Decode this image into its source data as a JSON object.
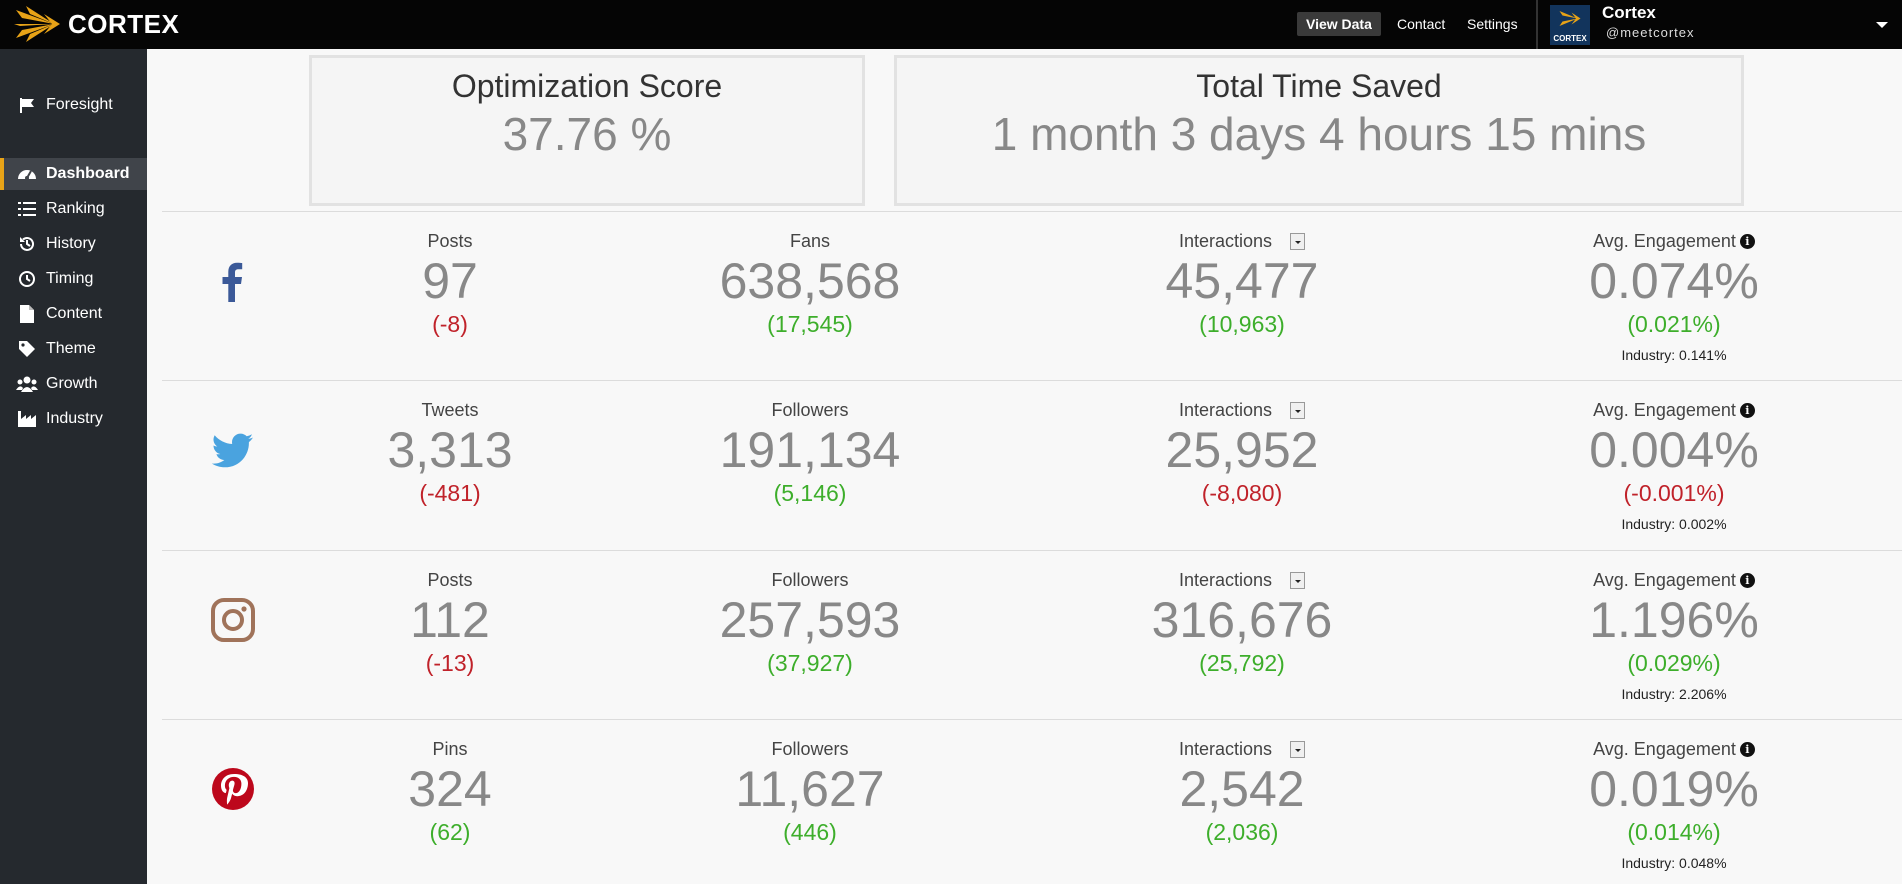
{
  "brand": {
    "logo_text": "CORTEX"
  },
  "topnav": {
    "view_data": "View Data",
    "contact": "Contact",
    "settings": "Settings"
  },
  "account": {
    "name": "Cortex",
    "handle": "@meetcortex",
    "avatar_text": "CORTEX"
  },
  "sidebar": {
    "items": [
      {
        "label": "Foresight",
        "icon": "flag-icon"
      },
      {
        "label": "Dashboard",
        "icon": "dashboard-icon",
        "active": true
      },
      {
        "label": "Ranking",
        "icon": "list-icon"
      },
      {
        "label": "History",
        "icon": "history-icon"
      },
      {
        "label": "Timing",
        "icon": "clock-icon"
      },
      {
        "label": "Content",
        "icon": "file-icon"
      },
      {
        "label": "Theme",
        "icon": "tag-icon"
      },
      {
        "label": "Growth",
        "icon": "users-icon"
      },
      {
        "label": "Industry",
        "icon": "industry-icon"
      }
    ]
  },
  "scores": {
    "optimization": {
      "title": "Optimization Score",
      "value": "37.76 %"
    },
    "time_saved": {
      "title": "Total Time Saved",
      "value": "1 month 3 days 4 hours 15 mins"
    }
  },
  "networks": [
    {
      "name": "facebook",
      "icon": "facebook-icon",
      "color": "#3b5998",
      "posts": {
        "label": "Posts",
        "value": "97",
        "delta": "(-8)",
        "trend": "neg"
      },
      "audience": {
        "label": "Fans",
        "value": "638,568",
        "delta": "(17,545)",
        "trend": "pos"
      },
      "interactions": {
        "label": "Interactions",
        "value": "45,477",
        "delta": "(10,963)",
        "trend": "pos"
      },
      "engagement": {
        "label": "Avg. Engagement",
        "value": "0.074%",
        "delta": "(0.021%)",
        "trend": "pos",
        "industry": "Industry: 0.141%"
      }
    },
    {
      "name": "twitter",
      "icon": "twitter-icon",
      "color": "#4aa3df",
      "posts": {
        "label": "Tweets",
        "value": "3,313",
        "delta": "(-481)",
        "trend": "neg"
      },
      "audience": {
        "label": "Followers",
        "value": "191,134",
        "delta": "(5,146)",
        "trend": "pos"
      },
      "interactions": {
        "label": "Interactions",
        "value": "25,952",
        "delta": "(-8,080)",
        "trend": "neg"
      },
      "engagement": {
        "label": "Avg. Engagement",
        "value": "0.004%",
        "delta": "(-0.001%)",
        "trend": "neg",
        "industry": "Industry: 0.002%"
      }
    },
    {
      "name": "instagram",
      "icon": "instagram-icon",
      "color": "#a0735a",
      "posts": {
        "label": "Posts",
        "value": "112",
        "delta": "(-13)",
        "trend": "neg"
      },
      "audience": {
        "label": "Followers",
        "value": "257,593",
        "delta": "(37,927)",
        "trend": "pos"
      },
      "interactions": {
        "label": "Interactions",
        "value": "316,676",
        "delta": "(25,792)",
        "trend": "pos"
      },
      "engagement": {
        "label": "Avg. Engagement",
        "value": "1.196%",
        "delta": "(0.029%)",
        "trend": "pos",
        "industry": "Industry: 2.206%"
      }
    },
    {
      "name": "pinterest",
      "icon": "pinterest-icon",
      "color": "#bd081c",
      "posts": {
        "label": "Pins",
        "value": "324",
        "delta": "(62)",
        "trend": "pos"
      },
      "audience": {
        "label": "Followers",
        "value": "11,627",
        "delta": "(446)",
        "trend": "pos"
      },
      "interactions": {
        "label": "Interactions",
        "value": "2,542",
        "delta": "(2,036)",
        "trend": "pos"
      },
      "engagement": {
        "label": "Avg. Engagement",
        "value": "0.019%",
        "delta": "(0.014%)",
        "trend": "pos",
        "industry": "Industry: 0.048%"
      }
    }
  ],
  "colors": {
    "accent": "#e8a317",
    "positive": "#3dae2b",
    "negative": "#c0222a",
    "sidebar_bg": "#25292e",
    "topbar_bg": "#050505"
  }
}
